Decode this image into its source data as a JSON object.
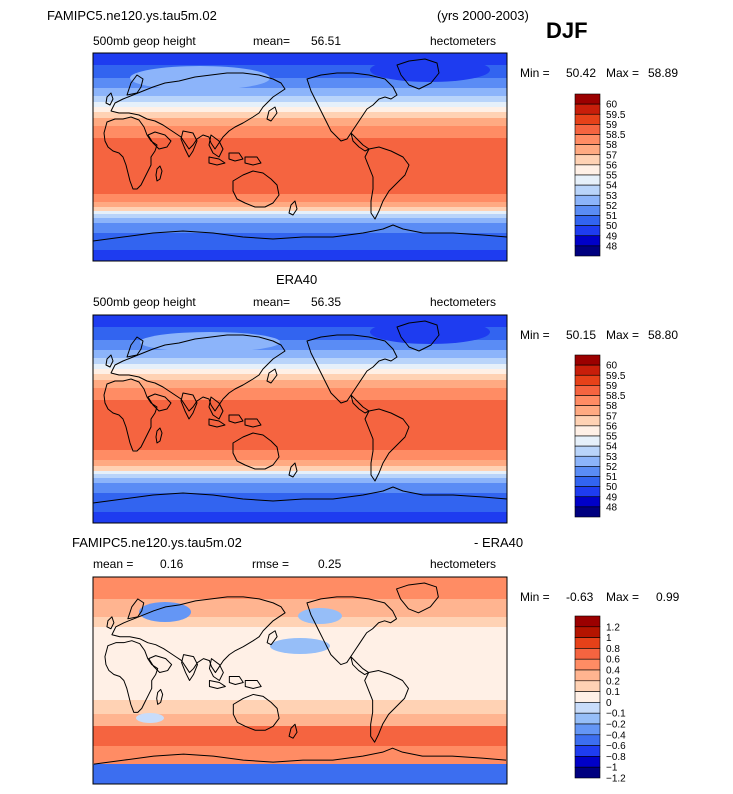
{
  "header": {
    "case_name": "FAMIPC5.ne120.ys.tau5m.02",
    "years": "(yrs 2000-2003)",
    "season": "DJF"
  },
  "colors": {
    "abs_scale": [
      "#00007f",
      "#0000c8",
      "#1e3cf0",
      "#3264f0",
      "#5a8cf5",
      "#8cb4fa",
      "#b9d4fa",
      "#e6f0fa",
      "#fff0e6",
      "#ffd2b4",
      "#ffaa82",
      "#ff8c64",
      "#f56440",
      "#e64119",
      "#c81e0a",
      "#9b0000"
    ],
    "diff_scale": [
      "#00007f",
      "#0000c8",
      "#1e3cf0",
      "#3c6ef0",
      "#6496f5",
      "#96bef8",
      "#c8dcfa",
      "#fff0e6",
      "#ffd2b4",
      "#ffb490",
      "#ff8c64",
      "#f56440",
      "#e64119",
      "#b41400",
      "#9b0000"
    ]
  },
  "panels": [
    {
      "id": "model",
      "title": "",
      "left_label": "500mb geop height",
      "mean_label": "mean=",
      "mean_value": "56.51",
      "units": "hectometers",
      "min_label": "Min =",
      "min_value": "50.42",
      "max_label": "Max =",
      "max_value": "58.89"
    },
    {
      "id": "obs",
      "title": "ERA40",
      "left_label": "500mb geop height",
      "mean_label": "mean=",
      "mean_value": "56.35",
      "units": "hectometers",
      "min_label": "Min =",
      "min_value": "50.15",
      "max_label": "Max =",
      "max_value": "58.80"
    },
    {
      "id": "diff",
      "title_left": "FAMIPC5.ne120.ys.tau5m.02",
      "title_right": "- ERA40",
      "mean_label": "mean =",
      "mean_value": "0.16",
      "rmse_label": "rmse =",
      "rmse_value": "0.25",
      "units": "hectometers",
      "min_label": "Min =",
      "min_value": "-0.63",
      "max_label": "Max =",
      "max_value": "0.99"
    }
  ],
  "chart_data": [
    {
      "type": "heatmap",
      "title": "500mb geop height",
      "units": "hectometers",
      "mean": 56.51,
      "min": 50.42,
      "max": 58.89,
      "colorbar_levels": [
        "60",
        "59.5",
        "59",
        "58.5",
        "58",
        "57",
        "56",
        "55",
        "54",
        "53",
        "52",
        "51",
        "50",
        "49",
        "48"
      ]
    },
    {
      "type": "heatmap",
      "title": "ERA40",
      "units": "hectometers",
      "mean": 56.35,
      "min": 50.15,
      "max": 58.8,
      "colorbar_levels": [
        "60",
        "59.5",
        "59",
        "58.5",
        "58",
        "57",
        "56",
        "55",
        "54",
        "53",
        "52",
        "51",
        "50",
        "49",
        "48"
      ]
    },
    {
      "type": "heatmap",
      "title": "FAMIPC5.ne120.ys.tau5m.02 - ERA40",
      "units": "hectometers",
      "mean": 0.16,
      "rmse": 0.25,
      "min": -0.63,
      "max": 0.99,
      "colorbar_levels": [
        "1.2",
        "1",
        "0.8",
        "0.6",
        "0.4",
        "0.2",
        "0.1",
        "0",
        "−0.1",
        "−0.2",
        "−0.4",
        "−0.6",
        "−0.8",
        "−1",
        "−1.2"
      ]
    }
  ]
}
